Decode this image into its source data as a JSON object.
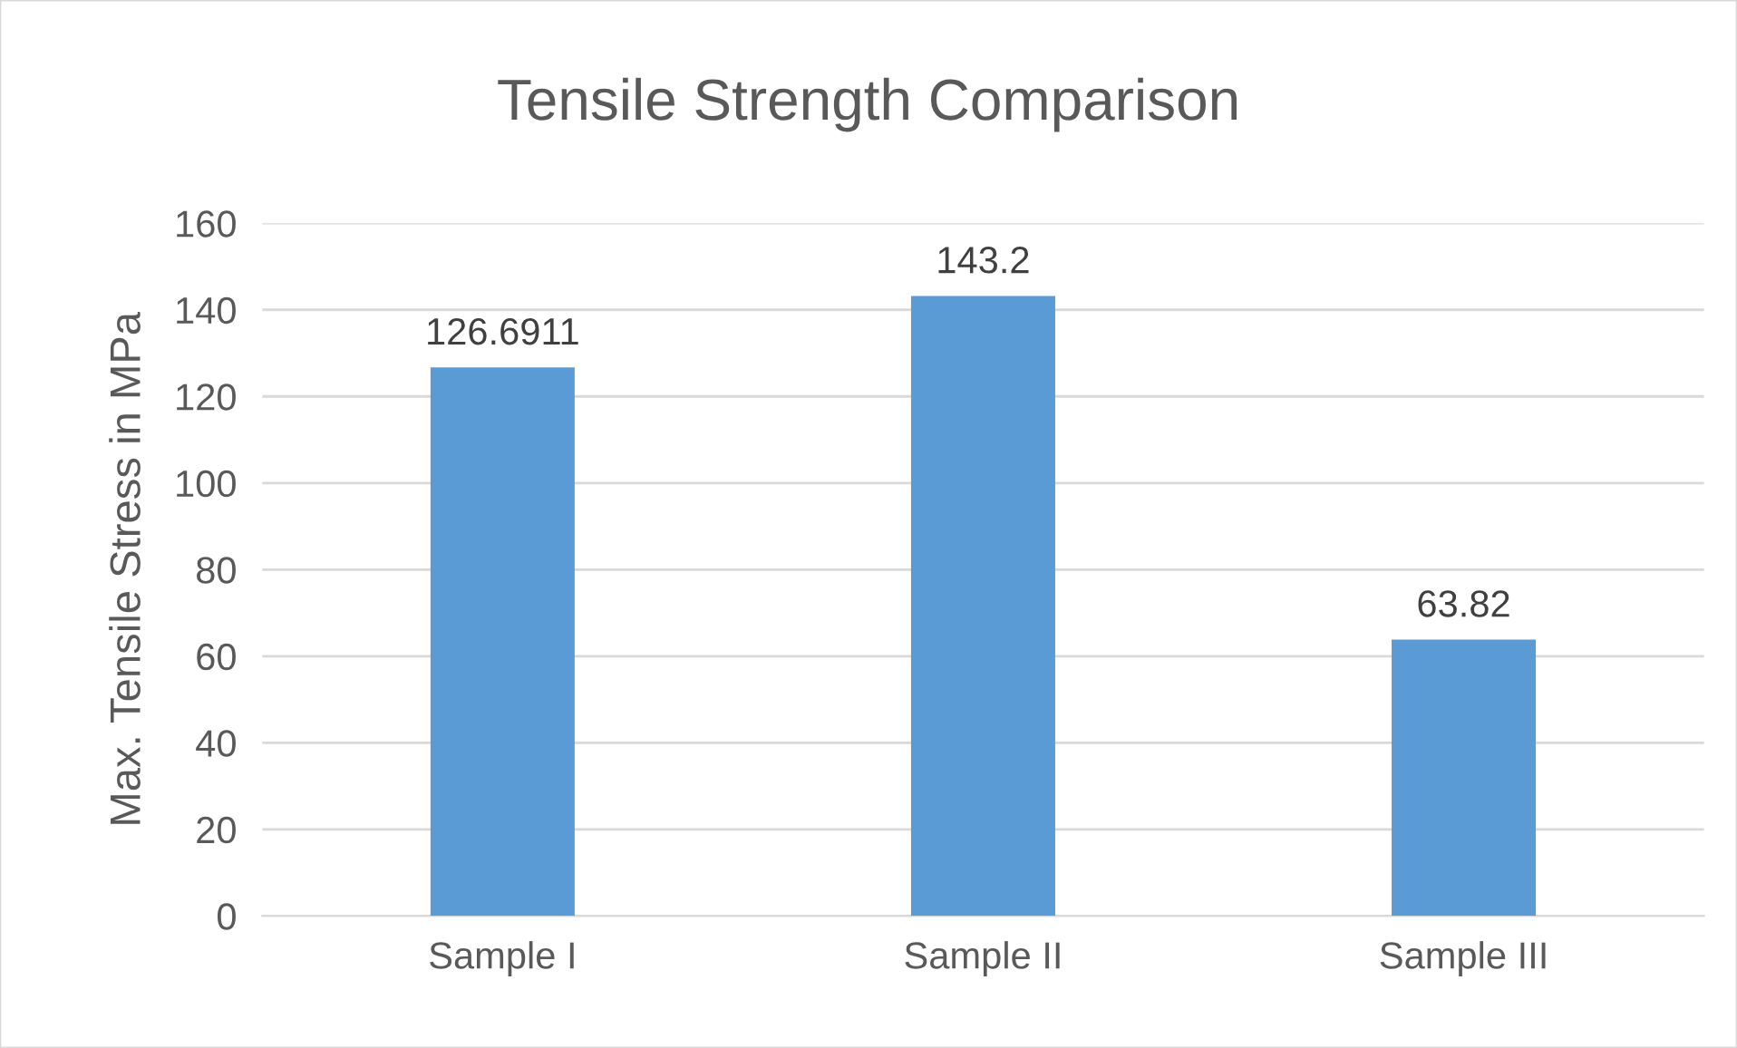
{
  "chart_data": {
    "type": "bar",
    "title": "Tensile Strength Comparison",
    "ylabel": "Max. Tensile Stress in MPa",
    "categories": [
      "Sample I",
      "Sample II",
      "Sample III"
    ],
    "values": [
      126.6911,
      143.2,
      63.82
    ],
    "color": "#5b9bd5",
    "ylim": [
      0,
      160
    ],
    "yticks": [
      0,
      20,
      40,
      60,
      80,
      100,
      120,
      140,
      160
    ],
    "grid": "y",
    "data_labels": true,
    "legend": false
  }
}
